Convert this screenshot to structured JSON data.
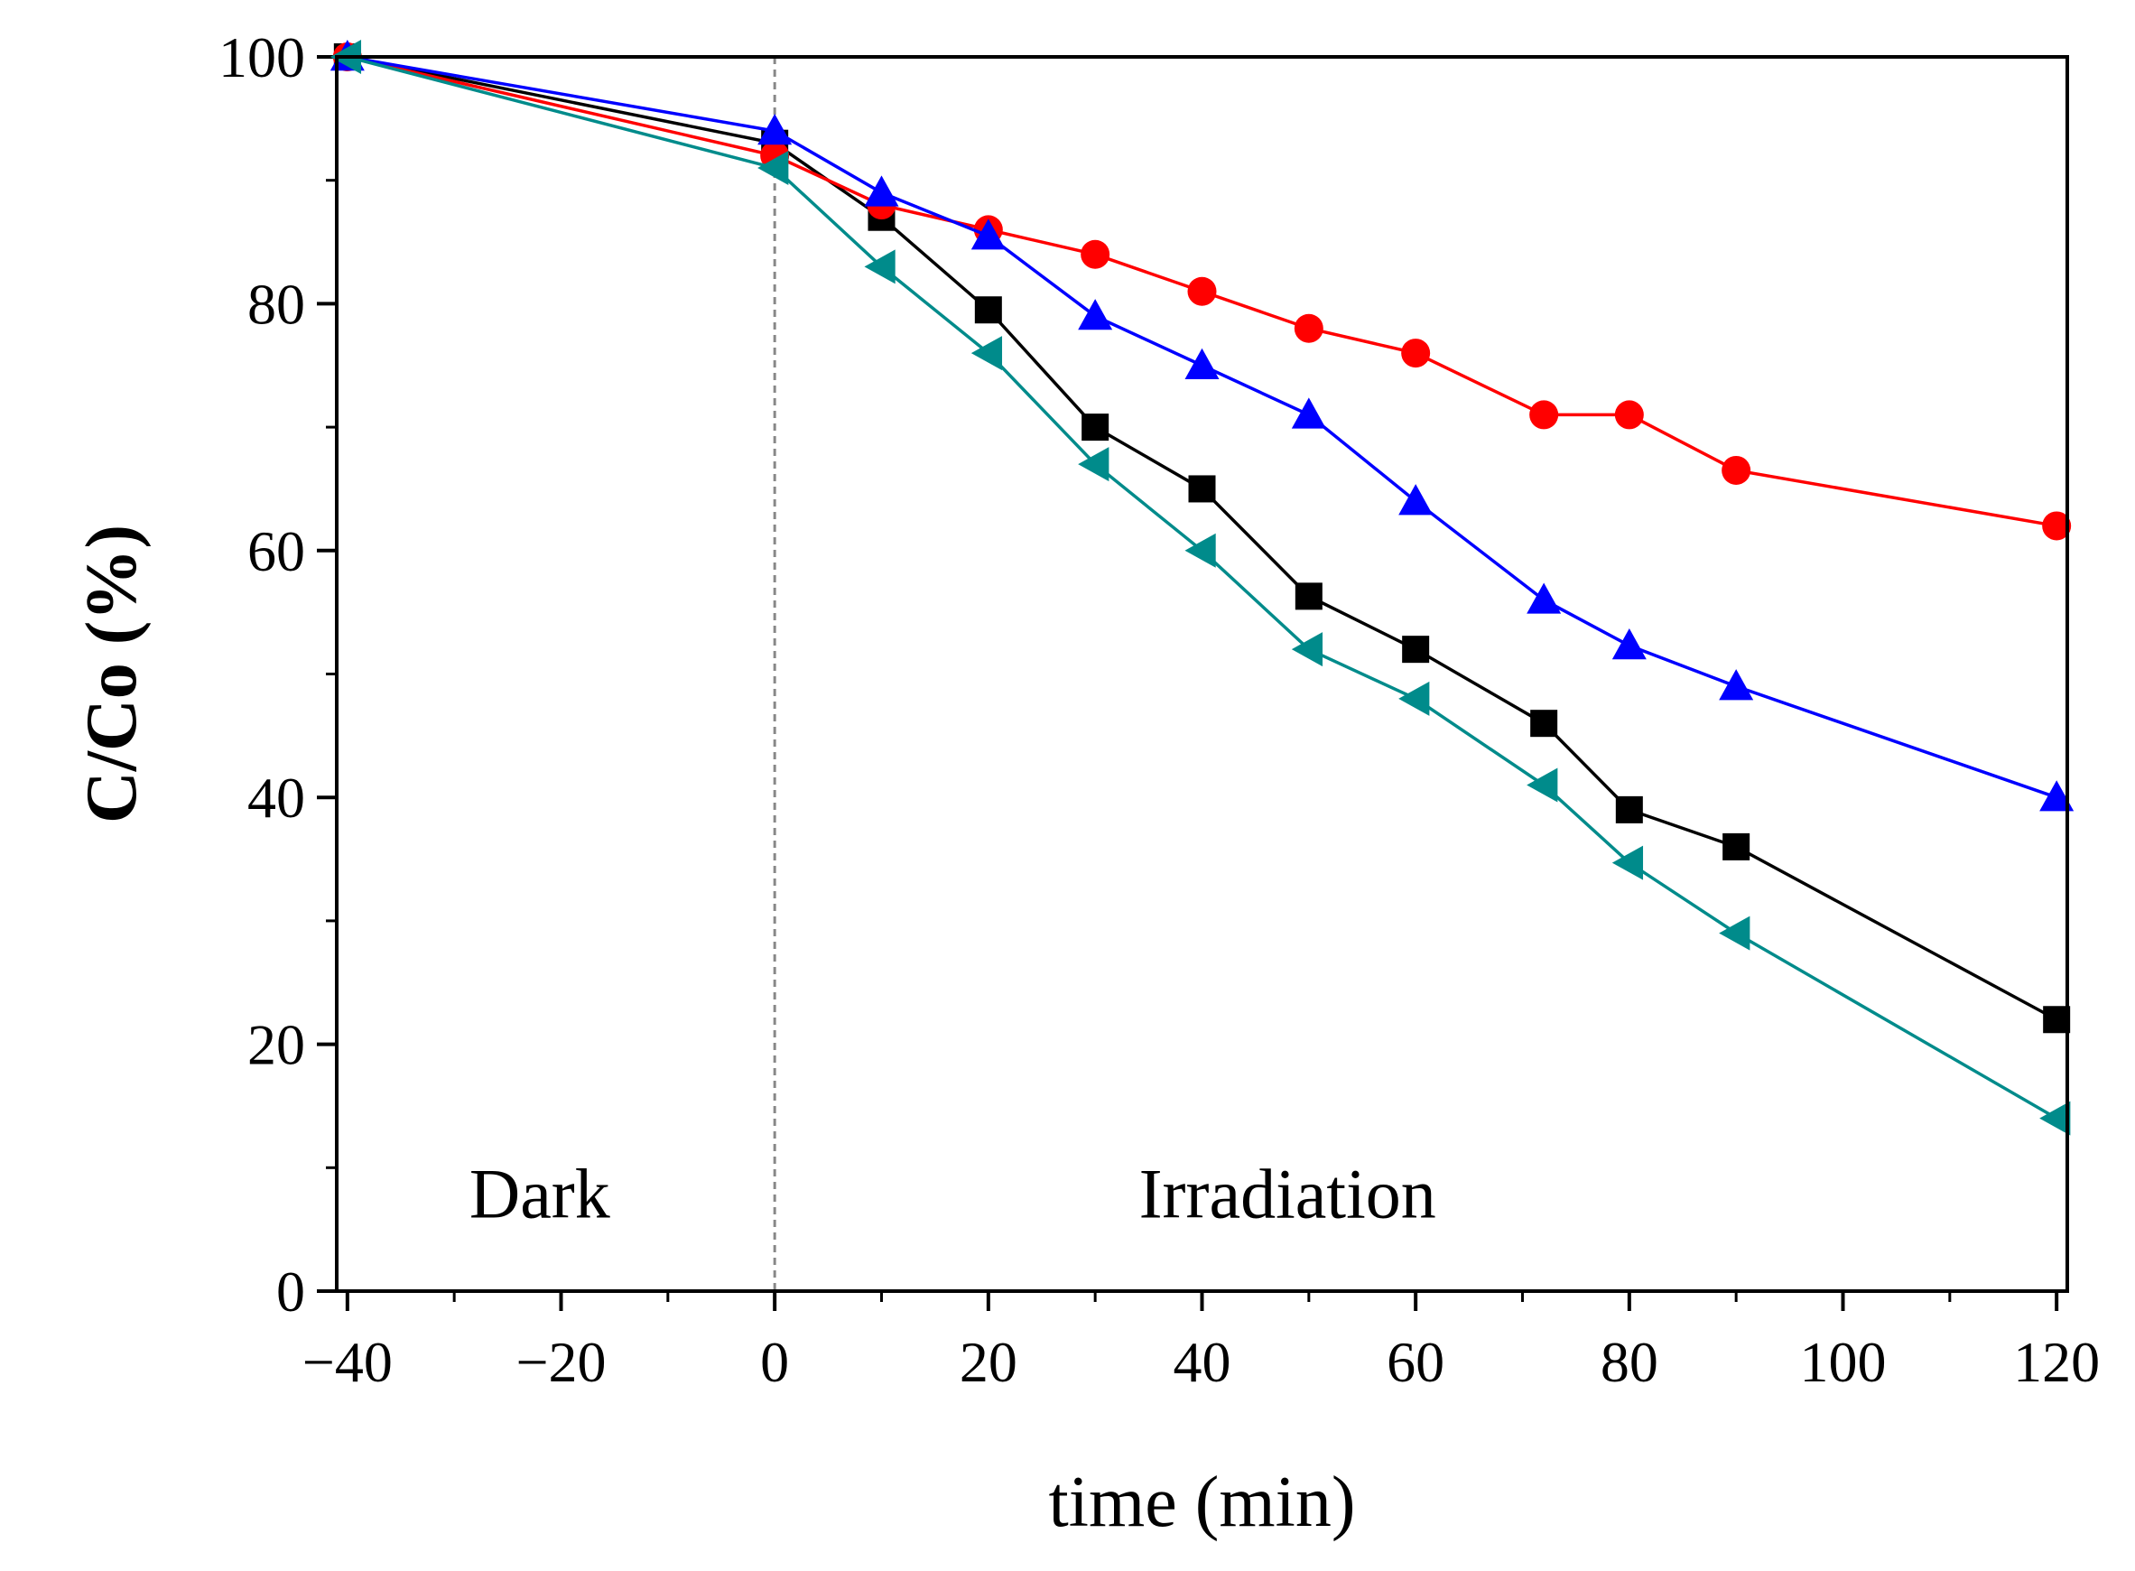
{
  "chart_data": {
    "type": "line",
    "xlabel": "time (min)",
    "ylabel": "C/Co (%)",
    "xlim": [
      -41,
      121
    ],
    "ylim": [
      0,
      100
    ],
    "xticks": [
      -40,
      -20,
      0,
      20,
      40,
      60,
      80,
      100,
      120
    ],
    "xtick_labels": [
      "-40",
      "-20",
      "0",
      "20",
      "40",
      "60",
      "80",
      "100",
      "120"
    ],
    "yticks": [
      0,
      20,
      40,
      60,
      80,
      100
    ],
    "ytick_labels": [
      "0",
      "20",
      "40",
      "60",
      "80",
      "100"
    ],
    "grid": false,
    "reference_line": {
      "x": 0,
      "style": "dashed",
      "color": "#888888"
    },
    "annotations": [
      {
        "text": "Dark",
        "x": -22,
        "y": 8
      },
      {
        "text": "Irradiation",
        "x": 48,
        "y": 8
      }
    ],
    "series": [
      {
        "marker": "square",
        "color": "#000000",
        "x": [
          -40,
          0,
          10,
          20,
          30,
          40,
          50,
          60,
          72,
          80,
          90,
          120
        ],
        "y": [
          100,
          93,
          87,
          79.5,
          70,
          65,
          56.3,
          52,
          46,
          39,
          36,
          22
        ]
      },
      {
        "marker": "circle",
        "color": "#ff0000",
        "x": [
          -40,
          0,
          10,
          20,
          30,
          40,
          50,
          60,
          72,
          80,
          90,
          120
        ],
        "y": [
          100,
          92,
          88,
          86,
          84,
          81,
          78,
          76,
          71,
          71,
          66.5,
          62
        ]
      },
      {
        "marker": "triangle-up",
        "color": "#0000ff",
        "x": [
          -40,
          0,
          10,
          20,
          30,
          40,
          50,
          60,
          72,
          80,
          90,
          120
        ],
        "y": [
          100,
          94,
          89,
          85.5,
          79,
          75,
          71,
          64,
          56,
          52.3,
          49,
          40
        ]
      },
      {
        "marker": "triangle-left",
        "color": "#008b8b",
        "x": [
          -40,
          0,
          10,
          20,
          30,
          40,
          50,
          60,
          72,
          80,
          90,
          120
        ],
        "y": [
          100,
          91,
          83,
          76,
          67,
          60,
          52,
          48,
          41,
          34.7,
          29,
          14
        ]
      }
    ]
  }
}
